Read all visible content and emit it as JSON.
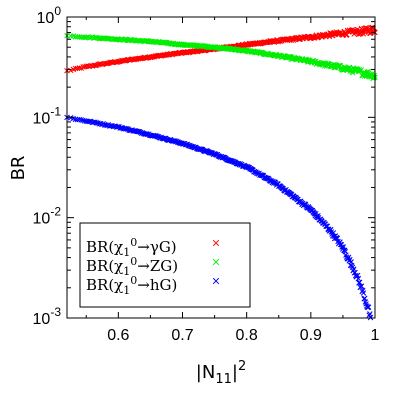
{
  "chart_data": {
    "type": "scatter",
    "xlabel": "|N",
    "xlabel_sub": "11",
    "xlabel_sup": "2",
    "ylabel": "BR",
    "xlim": [
      0.52,
      1.0
    ],
    "ylim": [
      0.001,
      1.0
    ],
    "y_scale": "log",
    "legend_position": "bottom-left",
    "x_ticks": [
      {
        "value": 0.6,
        "label": "0.6"
      },
      {
        "value": 0.7,
        "label": "0.7"
      },
      {
        "value": 0.8,
        "label": "0.8"
      },
      {
        "value": 0.9,
        "label": "0.9"
      },
      {
        "value": 1.0,
        "label": "1"
      }
    ],
    "y_ticks": [
      {
        "value": 0.001,
        "base": "10",
        "exp": "-3"
      },
      {
        "value": 0.01,
        "base": "10",
        "exp": "-2"
      },
      {
        "value": 0.1,
        "base": "10",
        "exp": "-1"
      },
      {
        "value": 1,
        "base": "10",
        "exp": "0"
      }
    ],
    "series": [
      {
        "name": "BR(χ̃₁⁰→γG̃)",
        "color": "#ff0000",
        "marker": "x",
        "points": [
          [
            0.52,
            0.29
          ],
          [
            0.55,
            0.32
          ],
          [
            0.6,
            0.36
          ],
          [
            0.65,
            0.4
          ],
          [
            0.7,
            0.44
          ],
          [
            0.75,
            0.48
          ],
          [
            0.8,
            0.53
          ],
          [
            0.85,
            0.58
          ],
          [
            0.9,
            0.63
          ],
          [
            0.95,
            0.69
          ],
          [
            0.98,
            0.72
          ],
          [
            1.0,
            0.75
          ]
        ]
      },
      {
        "name": "BR(χ̃₁⁰→ZG̃)",
        "color": "#00ee00",
        "marker": "x",
        "points": [
          [
            0.52,
            0.65
          ],
          [
            0.55,
            0.63
          ],
          [
            0.6,
            0.6
          ],
          [
            0.65,
            0.57
          ],
          [
            0.7,
            0.53
          ],
          [
            0.75,
            0.5
          ],
          [
            0.8,
            0.46
          ],
          [
            0.85,
            0.41
          ],
          [
            0.9,
            0.36
          ],
          [
            0.95,
            0.31
          ],
          [
            0.98,
            0.28
          ],
          [
            1.0,
            0.26
          ]
        ]
      },
      {
        "name": "BR(χ̃₁⁰→hG̃)",
        "color": "#0000ff",
        "marker": "x",
        "points": [
          [
            0.52,
            0.1
          ],
          [
            0.55,
            0.092
          ],
          [
            0.6,
            0.08
          ],
          [
            0.65,
            0.067
          ],
          [
            0.7,
            0.055
          ],
          [
            0.75,
            0.043
          ],
          [
            0.8,
            0.032
          ],
          [
            0.85,
            0.021
          ],
          [
            0.9,
            0.012
          ],
          [
            0.93,
            0.0075
          ],
          [
            0.95,
            0.005
          ],
          [
            0.97,
            0.0028
          ],
          [
            0.98,
            0.0019
          ],
          [
            0.99,
            0.0012
          ],
          [
            0.995,
            0.0008
          ]
        ]
      }
    ],
    "legend": [
      {
        "prefix": "BR(",
        "chi": "χ",
        "sub": "1",
        "sup": "0",
        "arrow": "→",
        "product": "γ",
        "grav": "G",
        "suffix": ")",
        "color": "#ff0000"
      },
      {
        "prefix": "BR(",
        "chi": "χ",
        "sub": "1",
        "sup": "0",
        "arrow": "→",
        "product": "Z",
        "grav": "G",
        "suffix": ")",
        "color": "#00ee00"
      },
      {
        "prefix": "BR(",
        "chi": "χ",
        "sub": "1",
        "sup": "0",
        "arrow": "→",
        "product": "h",
        "grav": "G",
        "suffix": ")",
        "color": "#0000ff"
      }
    ]
  }
}
